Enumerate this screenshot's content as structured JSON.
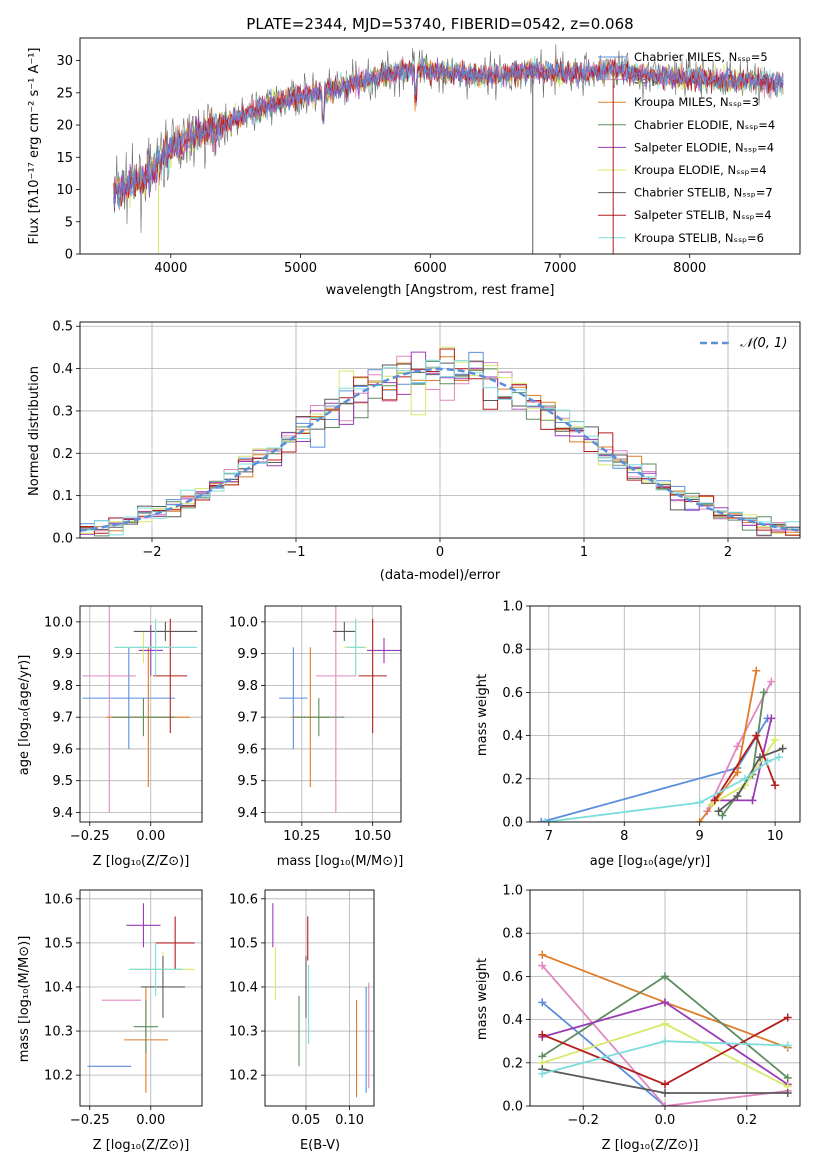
{
  "colors": [
    "#5b8fdc",
    "#e287c0",
    "#e07c28",
    "#5e8d60",
    "#9b3cb6",
    "#d8e86a",
    "#5a5a5a",
    "#b51d1d",
    "#7ddddd"
  ],
  "chart_data": [
    {
      "id": "spectrum",
      "type": "line",
      "title": "PLATE=2344, MJD=53740, FIBERID=0542, z=0.068",
      "xlabel": "wavelength [Angstrom, rest frame]",
      "ylabel": "Flux [fλ10⁻¹⁷ erg cm⁻² s⁻¹ A⁻¹]",
      "xlim": [
        3300,
        8850
      ],
      "ylim": [
        0,
        33.5
      ],
      "xticks": [
        4000,
        5000,
        6000,
        7000,
        8000
      ],
      "yticks": [
        0,
        5,
        10,
        15,
        20,
        25,
        30
      ],
      "grid": false,
      "legend_position": "top-right",
      "series": [
        {
          "name": "Chabrier MILES, Nₛₛₚ=5"
        },
        {
          "name": "Salpeter MILES, Nₛₛₚ=4"
        },
        {
          "name": "Kroupa MILES, Nₛₛₚ=3"
        },
        {
          "name": "Chabrier ELODIE, Nₛₛₚ=4"
        },
        {
          "name": "Salpeter ELODIE, Nₛₛₚ=4"
        },
        {
          "name": "Kroupa ELODIE, Nₛₛₚ=4"
        },
        {
          "name": "Chabrier STELIB, Nₛₛₚ=7"
        },
        {
          "name": "Salpeter STELIB, Nₛₛₚ=4"
        },
        {
          "name": "Kroupa STELIB, Nₛₛₚ=6"
        }
      ],
      "continuum": {
        "x": [
          3550,
          3700,
          3850,
          4000,
          4200,
          4400,
          4600,
          4800,
          5000,
          5200,
          5400,
          5600,
          5800,
          6000,
          6200,
          6400,
          6600,
          6800,
          7000,
          7200,
          7400,
          7600,
          7800,
          8000,
          8200,
          8400,
          8700
        ],
        "y": [
          9.5,
          11,
          12.5,
          16.5,
          18.5,
          20,
          22,
          23.5,
          24.5,
          25,
          26.5,
          27.5,
          28.5,
          28.5,
          28,
          27.5,
          28,
          28.5,
          28,
          28,
          28.5,
          28,
          27.5,
          27.5,
          27,
          27,
          26.5
        ]
      }
    },
    {
      "id": "residuals",
      "type": "bar",
      "xlabel": "(data-model)/error",
      "ylabel": "Normed distribution",
      "xlim": [
        -2.5,
        2.5
      ],
      "ylim": [
        0,
        0.51
      ],
      "xticks": [
        -2,
        -1,
        0,
        1,
        2
      ],
      "yticks": [
        0.0,
        0.1,
        0.2,
        0.3,
        0.4,
        0.5
      ],
      "grid": true,
      "legend_position": "top-right",
      "reference": {
        "name": "𝒩(0, 1)",
        "mean": 0,
        "sigma": 1
      },
      "bin_width": 0.1
    },
    {
      "id": "age-vs-z",
      "type": "scatter",
      "xlabel": "Z [log₁₀(Z/Z⊙)]",
      "ylabel": "age  [log₁₀(age/yr)]",
      "xlim": [
        -0.29,
        0.21
      ],
      "ylim": [
        9.37,
        10.05
      ],
      "xticks": [
        -0.25,
        0.0
      ],
      "xtick_labels": [
        "−0.25",
        "0.00"
      ],
      "yticks": [
        9.4,
        9.5,
        9.6,
        9.7,
        9.8,
        9.9,
        10.0
      ],
      "grid": true,
      "points": [
        {
          "x": -0.09,
          "y": 9.76,
          "xerr": 0.19,
          "yerr": 0.16
        },
        {
          "x": -0.17,
          "y": 9.83,
          "xerr": 0.11,
          "yerr": 0.43
        },
        {
          "x": -0.01,
          "y": 9.7,
          "xerr": 0.17,
          "yerr": 0.22
        },
        {
          "x": -0.03,
          "y": 9.7,
          "xerr": 0.13,
          "yerr": 0.06
        },
        {
          "x": 0.0,
          "y": 9.91,
          "xerr": 0.05,
          "yerr": 0.08
        },
        {
          "x": -0.03,
          "y": 9.92,
          "xerr": 0.11,
          "yerr": 0.05
        },
        {
          "x": 0.06,
          "y": 9.97,
          "xerr": 0.13,
          "yerr": 0.03
        },
        {
          "x": 0.08,
          "y": 9.83,
          "xerr": 0.07,
          "yerr": 0.18
        },
        {
          "x": 0.02,
          "y": 9.92,
          "xerr": 0.17,
          "yerr": 0.09
        }
      ]
    },
    {
      "id": "age-vs-mass",
      "type": "scatter",
      "xlabel": "mass [log₁₀(M/M⊙)]",
      "xlim": [
        10.12,
        10.6
      ],
      "ylim": [
        9.37,
        10.05
      ],
      "xticks": [
        10.25,
        10.5
      ],
      "xtick_labels": [
        "10.25",
        "10.50"
      ],
      "yticks": [
        9.4,
        9.5,
        9.6,
        9.7,
        9.8,
        9.9,
        10.0
      ],
      "grid": true,
      "points": [
        {
          "x": 10.22,
          "y": 9.76,
          "xerr": 0.05,
          "yerr": 0.16
        },
        {
          "x": 10.37,
          "y": 9.83,
          "xerr": 0.07,
          "yerr": 0.43
        },
        {
          "x": 10.28,
          "y": 9.7,
          "xerr": 0.07,
          "yerr": 0.22
        },
        {
          "x": 10.31,
          "y": 9.7,
          "xerr": 0.09,
          "yerr": 0.06
        },
        {
          "x": 10.54,
          "y": 9.91,
          "xerr": 0.06,
          "yerr": 0.04
        },
        {
          "x": 10.44,
          "y": 9.92,
          "xerr": 0.04,
          "yerr": 0.09
        },
        {
          "x": 10.4,
          "y": 9.97,
          "xerr": 0.04,
          "yerr": 0.03
        },
        {
          "x": 10.5,
          "y": 9.83,
          "xerr": 0.05,
          "yerr": 0.18
        },
        {
          "x": 10.44,
          "y": 9.92,
          "xerr": 0.03,
          "yerr": 0.09
        }
      ]
    },
    {
      "id": "weight-vs-age",
      "type": "line",
      "xlabel": "age  [log₁₀(age/yr)]",
      "ylabel": "mass weight",
      "xlim": [
        6.75,
        10.33
      ],
      "ylim": [
        0,
        1.0
      ],
      "xticks": [
        7,
        8,
        9,
        10
      ],
      "yticks": [
        0.0,
        0.2,
        0.4,
        0.6,
        0.8,
        1.0
      ],
      "grid": true,
      "series": [
        {
          "x": [
            6.9,
            9.5,
            9.9
          ],
          "y": [
            0.0,
            0.25,
            0.48
          ]
        },
        {
          "x": [
            9.1,
            9.5,
            9.95
          ],
          "y": [
            0.05,
            0.35,
            0.65
          ]
        },
        {
          "x": [
            9.0,
            9.5,
            9.75
          ],
          "y": [
            0.0,
            0.23,
            0.7
          ]
        },
        {
          "x": [
            9.3,
            9.7,
            9.85
          ],
          "y": [
            0.03,
            0.22,
            0.6
          ]
        },
        {
          "x": [
            9.2,
            9.7,
            9.95
          ],
          "y": [
            0.1,
            0.1,
            0.48
          ]
        },
        {
          "x": [
            9.15,
            9.6,
            10.0
          ],
          "y": [
            0.08,
            0.17,
            0.38
          ]
        },
        {
          "x": [
            9.25,
            9.5,
            9.8,
            10.1
          ],
          "y": [
            0.05,
            0.12,
            0.3,
            0.34
          ]
        },
        {
          "x": [
            9.2,
            9.75,
            10.0
          ],
          "y": [
            0.1,
            0.4,
            0.17
          ]
        },
        {
          "x": [
            6.95,
            9.0,
            9.6,
            9.9,
            10.05
          ],
          "y": [
            0.0,
            0.09,
            0.2,
            0.28,
            0.3
          ]
        }
      ]
    },
    {
      "id": "mass-vs-z",
      "type": "scatter",
      "xlabel": "Z [log₁₀(Z/Z⊙)]",
      "ylabel": "mass [log₁₀(M/M⊙)]",
      "xlim": [
        -0.29,
        0.21
      ],
      "ylim": [
        10.13,
        10.62
      ],
      "xticks": [
        -0.25,
        0.0
      ],
      "xtick_labels": [
        "−0.25",
        "0.00"
      ],
      "yticks": [
        10.2,
        10.3,
        10.4,
        10.5,
        10.6
      ],
      "grid": true,
      "points": [
        {
          "x": -0.17,
          "y": 10.22,
          "xerr": 0.09,
          "yerr": 0.0
        },
        {
          "x": -0.12,
          "y": 10.37,
          "xerr": 0.08,
          "yerr": 0.0
        },
        {
          "x": -0.02,
          "y": 10.28,
          "xerr": 0.09,
          "yerr": 0.12
        },
        {
          "x": -0.02,
          "y": 10.31,
          "xerr": 0.05,
          "yerr": 0.06
        },
        {
          "x": -0.03,
          "y": 10.54,
          "xerr": 0.07,
          "yerr": 0.05
        },
        {
          "x": 0.05,
          "y": 10.44,
          "xerr": 0.13,
          "yerr": 0.04
        },
        {
          "x": 0.05,
          "y": 10.4,
          "xerr": 0.09,
          "yerr": 0.07
        },
        {
          "x": 0.1,
          "y": 10.5,
          "xerr": 0.08,
          "yerr": 0.06
        },
        {
          "x": 0.02,
          "y": 10.44,
          "xerr": 0.11,
          "yerr": 0.06
        }
      ]
    },
    {
      "id": "mass-vs-ebv",
      "type": "scatter",
      "xlabel": "E(B-V)",
      "xlim": [
        0.003,
        0.128
      ],
      "ylim": [
        10.13,
        10.62
      ],
      "xticks": [
        0.05,
        0.1
      ],
      "xtick_labels": [
        "0.05",
        "0.10"
      ],
      "yticks": [
        10.2,
        10.3,
        10.4,
        10.5,
        10.6
      ],
      "grid": true,
      "points": [
        {
          "x": 0.119,
          "y": 10.28,
          "xerr": 0.0,
          "yerr": 0.12
        },
        {
          "x": 0.122,
          "y": 10.29,
          "xerr": 0.0,
          "yerr": 0.12
        },
        {
          "x": 0.108,
          "y": 10.26,
          "xerr": 0.0,
          "yerr": 0.11
        },
        {
          "x": 0.042,
          "y": 10.3,
          "xerr": 0.0,
          "yerr": 0.08
        },
        {
          "x": 0.012,
          "y": 10.54,
          "xerr": 0.0,
          "yerr": 0.05
        },
        {
          "x": 0.015,
          "y": 10.43,
          "xerr": 0.0,
          "yerr": 0.06
        },
        {
          "x": 0.05,
          "y": 10.4,
          "xerr": 0.0,
          "yerr": 0.07
        },
        {
          "x": 0.052,
          "y": 10.51,
          "xerr": 0.0,
          "yerr": 0.05
        },
        {
          "x": 0.053,
          "y": 10.36,
          "xerr": 0.0,
          "yerr": 0.09
        }
      ]
    },
    {
      "id": "weight-vs-z",
      "type": "line",
      "xlabel": "Z [log₁₀(Z/Z⊙)]",
      "ylabel": "mass weight",
      "xlim": [
        -0.33,
        0.33
      ],
      "ylim": [
        0,
        1.0
      ],
      "xticks": [
        -0.2,
        0.0,
        0.2
      ],
      "xtick_labels": [
        "−0.2",
        "0.0",
        "0.2"
      ],
      "yticks": [
        0.0,
        0.2,
        0.4,
        0.6,
        0.8,
        1.0
      ],
      "grid": true,
      "series": [
        {
          "x": [
            -0.3,
            0.0
          ],
          "y": [
            0.48,
            0.0
          ]
        },
        {
          "x": [
            -0.3,
            0.0,
            0.3
          ],
          "y": [
            0.65,
            0.0,
            0.07
          ]
        },
        {
          "x": [
            -0.3,
            0.0,
            0.3
          ],
          "y": [
            0.7,
            0.48,
            0.27
          ]
        },
        {
          "x": [
            -0.3,
            0.0,
            0.3
          ],
          "y": [
            0.23,
            0.6,
            0.13
          ]
        },
        {
          "x": [
            -0.3,
            0.0,
            0.3
          ],
          "y": [
            0.32,
            0.48,
            0.1
          ]
        },
        {
          "x": [
            -0.3,
            0.0,
            0.3
          ],
          "y": [
            0.2,
            0.38,
            0.09
          ]
        },
        {
          "x": [
            -0.3,
            0.0,
            0.3
          ],
          "y": [
            0.17,
            0.06,
            0.06
          ]
        },
        {
          "x": [
            -0.3,
            0.0,
            0.3
          ],
          "y": [
            0.33,
            0.1,
            0.41
          ]
        },
        {
          "x": [
            -0.3,
            0.0,
            0.3
          ],
          "y": [
            0.15,
            0.3,
            0.28
          ]
        }
      ]
    }
  ]
}
